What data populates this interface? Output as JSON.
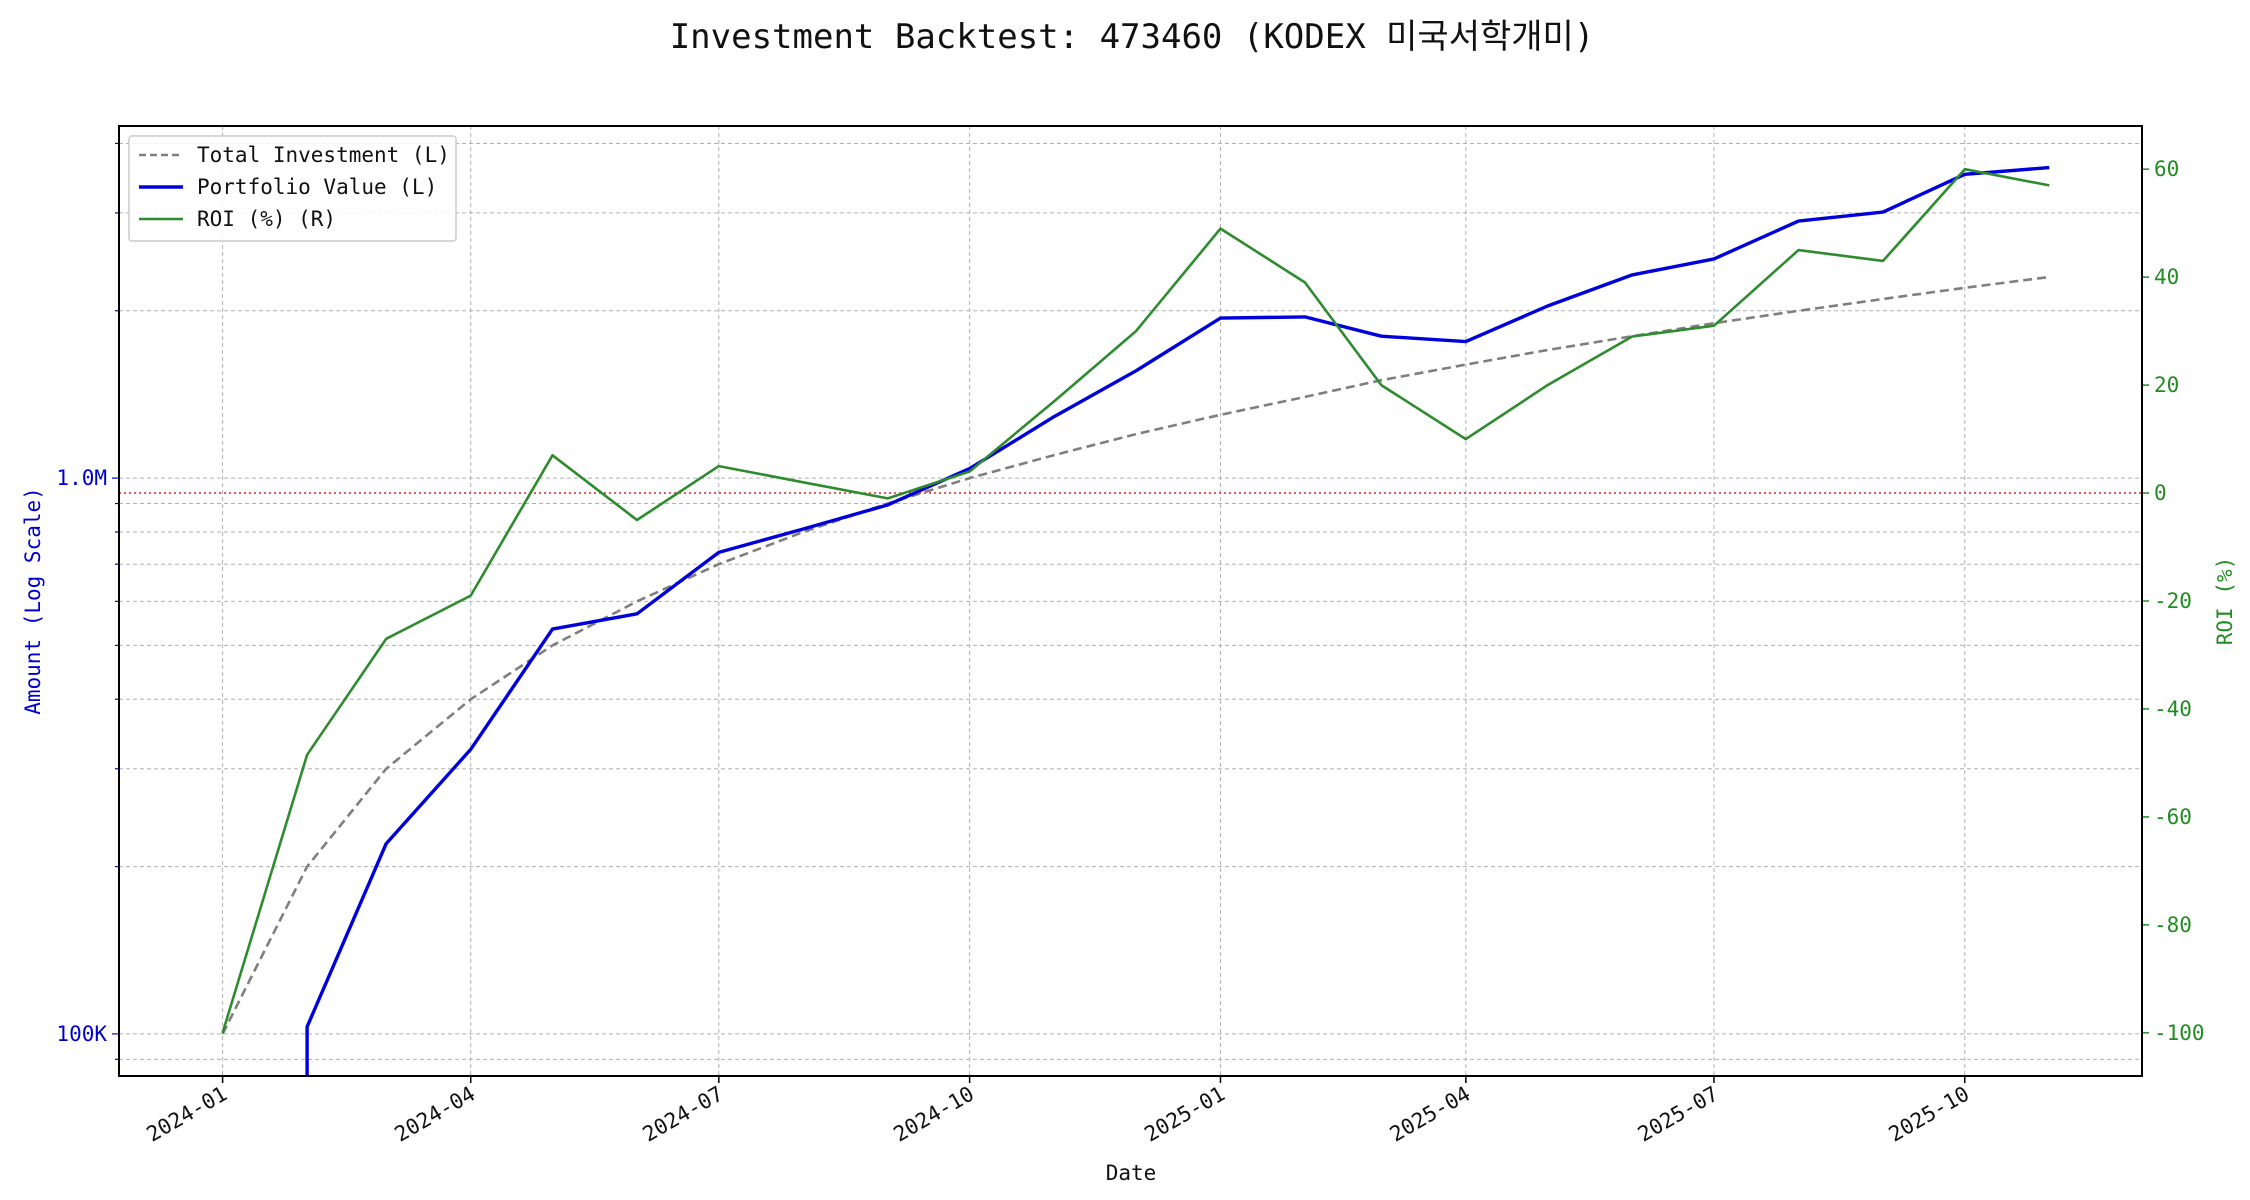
{
  "chart_data": {
    "type": "line",
    "title": "Investment Backtest: 473460 (KODEX 미국서학개미)",
    "xlabel": "Date",
    "ylabel_left": "Amount (Log Scale)",
    "ylabel_right": "ROI (%)",
    "y_left_scale": "log",
    "y_left_ticks": [
      {
        "value": 100000,
        "label": "100K"
      },
      {
        "value": 1000000,
        "label": "1.0M"
      }
    ],
    "y_left_range": [
      84000,
      4300000
    ],
    "y_right_range": [
      -108,
      68
    ],
    "y_right_ticks": [
      -100,
      -80,
      -60,
      -40,
      -20,
      0,
      20,
      40,
      60
    ],
    "x_range": [
      "2023-11-24",
      "2025-12-05"
    ],
    "x_ticks": [
      "2024-01",
      "2024-04",
      "2024-07",
      "2024-10",
      "2025-01",
      "2025-04",
      "2025-07",
      "2025-10"
    ],
    "grid": true,
    "legend_position": "upper left",
    "reference_line": {
      "axis": "right",
      "value": 0,
      "color": "#d62728",
      "style": "dotted"
    },
    "colors": {
      "left_axis": "#0000cc",
      "right_axis": "#228b22",
      "total_investment": "#7f7f7f",
      "portfolio_value": "#0000dd",
      "roi": "#2e8b2e"
    },
    "series": [
      {
        "name": "Total Investment (L)",
        "axis": "left",
        "style": "dashed",
        "x": [
          "2024-01-01",
          "2024-02-01",
          "2024-03-01",
          "2024-04-01",
          "2024-05-01",
          "2024-06-01",
          "2024-07-01",
          "2024-08-01",
          "2024-09-01",
          "2024-10-01",
          "2024-11-01",
          "2024-12-01",
          "2025-01-01",
          "2025-02-01",
          "2025-03-01",
          "2025-04-01",
          "2025-05-01",
          "2025-06-01",
          "2025-07-01",
          "2025-08-01",
          "2025-09-01",
          "2025-10-01",
          "2025-11-01"
        ],
        "values": [
          100000,
          200000,
          300000,
          400000,
          500000,
          600000,
          700000,
          800000,
          900000,
          1000000,
          1100000,
          1200000,
          1300000,
          1400000,
          1500000,
          1600000,
          1700000,
          1800000,
          1900000,
          2000000,
          2100000,
          2200000,
          2300000
        ]
      },
      {
        "name": "Portfolio Value (L)",
        "axis": "left",
        "style": "solid",
        "x": [
          "2024-02-01",
          "2024-02-01",
          "2024-03-01",
          "2024-04-01",
          "2024-05-01",
          "2024-06-01",
          "2024-07-01",
          "2024-08-01",
          "2024-09-01",
          "2024-10-01",
          "2024-11-01",
          "2024-12-01",
          "2025-01-01",
          "2025-02-01",
          "2025-03-01",
          "2025-04-01",
          "2025-05-01",
          "2025-06-01",
          "2025-07-01",
          "2025-08-01",
          "2025-09-01",
          "2025-10-01",
          "2025-11-01"
        ],
        "values": [
          84000,
          103000,
          220000,
          325000,
          535000,
          570000,
          735000,
          810000,
          895000,
          1040000,
          1290000,
          1560000,
          1940000,
          1950000,
          1800000,
          1760000,
          2040000,
          2320000,
          2480000,
          2900000,
          3010000,
          3520000,
          3620000
        ]
      },
      {
        "name": "ROI (%) (R)",
        "axis": "right",
        "style": "solid",
        "x": [
          "2024-01-01",
          "2024-02-01",
          "2024-03-01",
          "2024-04-01",
          "2024-05-01",
          "2024-06-01",
          "2024-07-01",
          "2024-08-01",
          "2024-09-01",
          "2024-10-01",
          "2024-11-01",
          "2024-12-01",
          "2025-01-01",
          "2025-02-01",
          "2025-03-01",
          "2025-04-01",
          "2025-05-01",
          "2025-06-01",
          "2025-07-01",
          "2025-08-01",
          "2025-09-01",
          "2025-10-01",
          "2025-11-01"
        ],
        "values": [
          -100,
          -48.5,
          -27,
          -19,
          7,
          -5,
          5,
          2,
          -1,
          4,
          17,
          30,
          49,
          39,
          20,
          10,
          20,
          29,
          31,
          45,
          43,
          60,
          57
        ]
      }
    ]
  }
}
